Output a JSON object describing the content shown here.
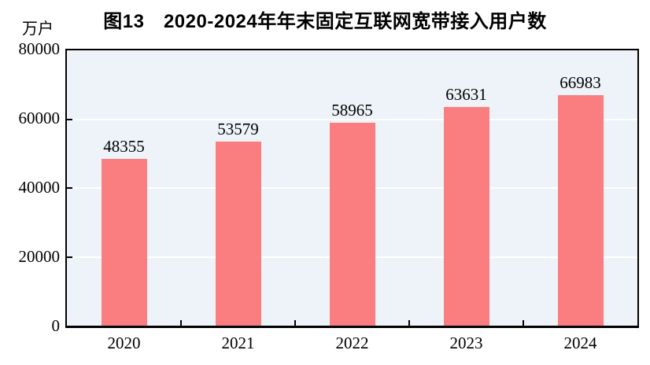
{
  "chart_data": {
    "type": "bar",
    "title": "图13　2020-2024年年末固定互联网宽带接入用户数",
    "ylabel": "万户",
    "xlabel": "",
    "categories": [
      "2020",
      "2021",
      "2022",
      "2023",
      "2024"
    ],
    "values": [
      48355,
      53579,
      58965,
      63631,
      66983
    ],
    "bar_labels": [
      "48355",
      "53579",
      "58965",
      "63631",
      "66983"
    ],
    "ylim": [
      0,
      80000
    ],
    "yticks": [
      0,
      20000,
      40000,
      60000,
      80000
    ],
    "ytick_labels": [
      "0",
      "20000",
      "40000",
      "60000",
      "80000"
    ],
    "grid": true,
    "legend_position": "none",
    "colors": {
      "bar": "#fa7d80",
      "plot_background": "#edf3f8",
      "gridline": "#ffffff",
      "axis": "#000000",
      "text": "#000000"
    }
  }
}
